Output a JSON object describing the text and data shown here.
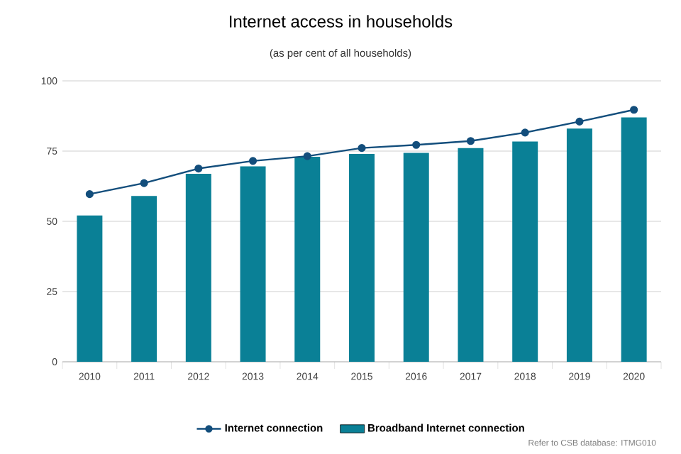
{
  "chart_data": {
    "type": "bar",
    "title": "Internet access in households",
    "subtitle": "(as per cent of all households)",
    "categories": [
      "2010",
      "2011",
      "2012",
      "2013",
      "2014",
      "2015",
      "2016",
      "2017",
      "2018",
      "2019",
      "2020"
    ],
    "series": [
      {
        "name": "Internet connection",
        "type": "line",
        "color": "#134e7c",
        "marker": "circle",
        "values": [
          59.7,
          63.6,
          68.8,
          71.5,
          73.2,
          76.1,
          77.2,
          78.6,
          81.6,
          85.5,
          89.7
        ]
      },
      {
        "name": "Broadband Internet connection",
        "type": "bar",
        "color": "#0a8096",
        "values": [
          52.1,
          59.0,
          66.9,
          69.6,
          73.0,
          74.0,
          74.4,
          76.1,
          78.4,
          83.0,
          87.0
        ]
      }
    ],
    "ylim": [
      0,
      100
    ],
    "yticks": [
      0,
      25,
      50,
      75,
      100
    ],
    "grid": "y",
    "legend": "bottom",
    "annotations": [
      "Refer to CSB database: ITMG010"
    ]
  }
}
